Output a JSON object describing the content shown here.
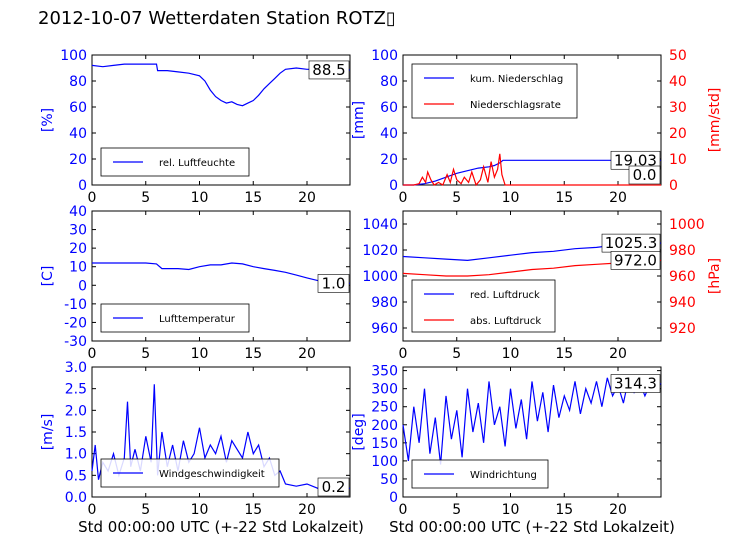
{
  "figure": {
    "title": "2012-10-07 Wetterdaten Station ROTZ▯"
  },
  "chart_data": [
    {
      "id": "humidity",
      "type": "line",
      "xlim": [
        0,
        24
      ],
      "ylim": [
        0,
        100
      ],
      "xticks": [
        0,
        5,
        10,
        15,
        20
      ],
      "yticks": [
        0,
        20,
        40,
        60,
        80,
        100
      ],
      "ylabel": "[%]",
      "ylabel_color": "#0000ff",
      "tick_color": "#0000ff",
      "legend": "lower-left",
      "series": [
        {
          "name": "rel. Luftfeuchte",
          "color": "#0000ff",
          "x": [
            0,
            1,
            2,
            3,
            4,
            5,
            6,
            6.1,
            7,
            8,
            9,
            10,
            10.5,
            11,
            11.5,
            12,
            12.5,
            13,
            13.5,
            14,
            14.5,
            15,
            15.5,
            16,
            16.5,
            17,
            17.5,
            18,
            19,
            20,
            21,
            22,
            23,
            24
          ],
          "y": [
            92,
            91,
            92,
            93,
            93,
            93,
            93,
            88,
            88,
            87,
            86,
            84,
            80,
            73,
            68,
            65,
            63,
            64,
            62,
            61,
            63,
            65,
            69,
            74,
            78,
            82,
            86,
            89,
            90,
            89,
            89,
            89,
            88.5,
            88.5
          ]
        }
      ],
      "value_box": "88.5"
    },
    {
      "id": "precip",
      "type": "line",
      "xlim": [
        0,
        24
      ],
      "ylim": [
        0,
        100
      ],
      "y2lim": [
        0,
        50
      ],
      "xticks": [
        0,
        5,
        10,
        15,
        20
      ],
      "yticks": [
        0,
        20,
        40,
        60,
        80,
        100
      ],
      "y2ticks": [
        0,
        10,
        20,
        30,
        40,
        50
      ],
      "ylabel": "[mm]",
      "y2label": "[mm/std]",
      "ylabel_color": "#0000ff",
      "y2label_color": "#ff0000",
      "legend": "upper-left",
      "series": [
        {
          "name": "kum. Niederschlag",
          "color": "#0000ff",
          "axis": "left",
          "x": [
            0,
            1,
            2,
            3,
            4,
            5,
            6,
            7,
            8,
            8.5,
            9,
            9.3,
            9.5,
            10,
            12,
            15,
            20,
            24
          ],
          "y": [
            0,
            0,
            1,
            3,
            6,
            9,
            11,
            13,
            14,
            15,
            17,
            19,
            19.03,
            19.03,
            19.03,
            19.03,
            19.03,
            19.03
          ]
        },
        {
          "name": "Niederschlagsrate",
          "color": "#ff0000",
          "axis": "right",
          "x": [
            0,
            1,
            1.5,
            1.8,
            2.1,
            2.3,
            2.6,
            2.9,
            3.3,
            3.7,
            4.1,
            4.4,
            4.7,
            5.0,
            5.4,
            5.7,
            6.1,
            6.4,
            6.8,
            7.2,
            7.5,
            7.9,
            8.2,
            8.5,
            8.8,
            9.0,
            9.2,
            9.5,
            10,
            24
          ],
          "y": [
            0,
            0,
            0.5,
            3,
            1,
            5,
            2,
            0,
            1,
            0,
            4,
            1,
            6,
            2,
            0.5,
            3,
            1,
            5,
            0,
            2,
            7,
            1,
            9,
            3,
            6,
            12,
            4,
            0,
            0,
            0
          ]
        }
      ],
      "value_boxes": [
        "19.03",
        "0.0"
      ]
    },
    {
      "id": "temperature",
      "type": "line",
      "xlim": [
        0,
        24
      ],
      "ylim": [
        -30,
        40
      ],
      "xticks": [
        0,
        5,
        10,
        15,
        20
      ],
      "yticks": [
        -30,
        -20,
        -10,
        0,
        10,
        20,
        30,
        40
      ],
      "ylabel": "[C]",
      "ylabel_color": "#0000ff",
      "tick_color": "#0000ff",
      "legend": "lower-left",
      "series": [
        {
          "name": "Lufttemperatur",
          "color": "#0000ff",
          "x": [
            0,
            1,
            2,
            3,
            4,
            5,
            6,
            6.5,
            7,
            8,
            9,
            10,
            11,
            12,
            13,
            14,
            15,
            16,
            17,
            18,
            19,
            20,
            21,
            22,
            23,
            24
          ],
          "y": [
            12,
            12,
            12,
            12,
            12,
            12,
            11.5,
            9,
            9,
            9,
            8.5,
            10,
            11,
            11,
            12,
            11.5,
            10,
            9,
            8,
            7,
            5.5,
            4,
            2.5,
            1.5,
            1,
            1
          ]
        }
      ],
      "value_box": "1.0"
    },
    {
      "id": "pressure",
      "type": "line",
      "xlim": [
        0,
        24
      ],
      "ylim": [
        950,
        1050
      ],
      "y2lim": [
        910,
        1010
      ],
      "xticks": [
        0,
        5,
        10,
        15,
        20
      ],
      "yticks": [
        960,
        980,
        1000,
        1020,
        1040
      ],
      "y2ticks": [
        920,
        940,
        960,
        980,
        1000
      ],
      "ylabel": "",
      "y2label": "[hPa]",
      "y2label_color": "#ff0000",
      "legend": "lower-left",
      "series": [
        {
          "name": "red. Luftdruck",
          "color": "#0000ff",
          "axis": "left",
          "x": [
            0,
            2,
            4,
            6,
            8,
            10,
            12,
            14,
            16,
            18,
            20,
            22,
            24
          ],
          "y": [
            1015,
            1014,
            1013,
            1012,
            1014,
            1016,
            1018,
            1019,
            1021,
            1022,
            1024,
            1025,
            1025.3
          ]
        },
        {
          "name": "abs. Luftdruck",
          "color": "#ff0000",
          "axis": "right",
          "x": [
            0,
            2,
            4,
            6,
            8,
            10,
            12,
            14,
            16,
            18,
            20,
            22,
            24
          ],
          "y": [
            962,
            961,
            960,
            960,
            961,
            963,
            965,
            966,
            968,
            969,
            970,
            971.5,
            972
          ]
        }
      ],
      "value_boxes": [
        "1025.3",
        "972.0"
      ]
    },
    {
      "id": "wind",
      "type": "line",
      "xlim": [
        0,
        24
      ],
      "ylim": [
        0,
        3
      ],
      "xticks": [
        0,
        5,
        10,
        15,
        20
      ],
      "yticks": [
        0.0,
        0.5,
        1.0,
        1.5,
        2.0,
        2.5,
        3.0
      ],
      "ylabel": "[m/s]",
      "ylabel_color": "#0000ff",
      "tick_color": "#0000ff",
      "xlabel": "Std 00:00:00 UTC (+-22 Std Lokalzeit)",
      "legend": "lower-left",
      "series": [
        {
          "name": "Windgeschwindigkeit",
          "color": "#0000ff",
          "x": [
            0,
            0.3,
            0.6,
            1,
            1.5,
            2,
            2.5,
            3,
            3.3,
            3.6,
            4,
            4.5,
            5,
            5.5,
            5.8,
            6.1,
            6.5,
            7,
            7.5,
            8,
            8.5,
            9,
            9.5,
            10,
            10.5,
            11,
            11.5,
            12,
            12.5,
            13,
            13.5,
            14,
            14.5,
            15,
            15.5,
            16,
            16.5,
            17,
            17.5,
            18,
            19,
            20,
            21,
            22,
            23,
            24
          ],
          "y": [
            0.6,
            1.2,
            0.4,
            0.8,
            0.6,
            1.0,
            0.5,
            0.9,
            2.2,
            0.7,
            1.1,
            0.6,
            1.4,
            0.8,
            2.6,
            0.5,
            1.5,
            0.7,
            1.2,
            0.6,
            1.3,
            0.8,
            1.0,
            1.6,
            0.9,
            1.2,
            1.0,
            1.4,
            0.8,
            1.3,
            1.1,
            0.9,
            1.5,
            1.0,
            1.2,
            0.7,
            0.9,
            0.5,
            0.6,
            0.3,
            0.25,
            0.3,
            0.2,
            0.3,
            0.2,
            0.2
          ]
        }
      ],
      "value_box": "0.2"
    },
    {
      "id": "winddir",
      "type": "line",
      "xlim": [
        0,
        24
      ],
      "ylim": [
        0,
        360
      ],
      "xticks": [
        0,
        5,
        10,
        15,
        20
      ],
      "yticks": [
        0,
        50,
        100,
        150,
        200,
        250,
        300,
        350
      ],
      "ylabel": "[deg]",
      "ylabel_color": "#0000ff",
      "xlabel": "Std 00:00:00 UTC (+-22 Std Lokalzeit)",
      "legend": "lower-left",
      "series": [
        {
          "name": "Windrichtung",
          "color": "#0000ff",
          "x": [
            0,
            0.5,
            1,
            1.5,
            2,
            2.5,
            3,
            3.5,
            4,
            4.5,
            5,
            5.5,
            6,
            6.5,
            7,
            7.5,
            8,
            8.5,
            9,
            9.5,
            10,
            10.5,
            11,
            11.5,
            12,
            12.5,
            13,
            13.5,
            14,
            14.5,
            15,
            15.5,
            16,
            16.5,
            17,
            17.5,
            18,
            18.5,
            19,
            19.5,
            20,
            20.5,
            21,
            21.5,
            22,
            22.5,
            23,
            23.5,
            24
          ],
          "y": [
            200,
            100,
            250,
            150,
            300,
            120,
            220,
            90,
            280,
            160,
            240,
            110,
            300,
            180,
            260,
            150,
            320,
            200,
            250,
            140,
            300,
            190,
            270,
            160,
            320,
            210,
            290,
            180,
            310,
            220,
            280,
            240,
            320,
            230,
            300,
            260,
            320,
            250,
            330,
            280,
            310,
            260,
            330,
            290,
            320,
            280,
            314,
            300,
            314.3
          ]
        }
      ],
      "value_box": "314.3"
    }
  ]
}
